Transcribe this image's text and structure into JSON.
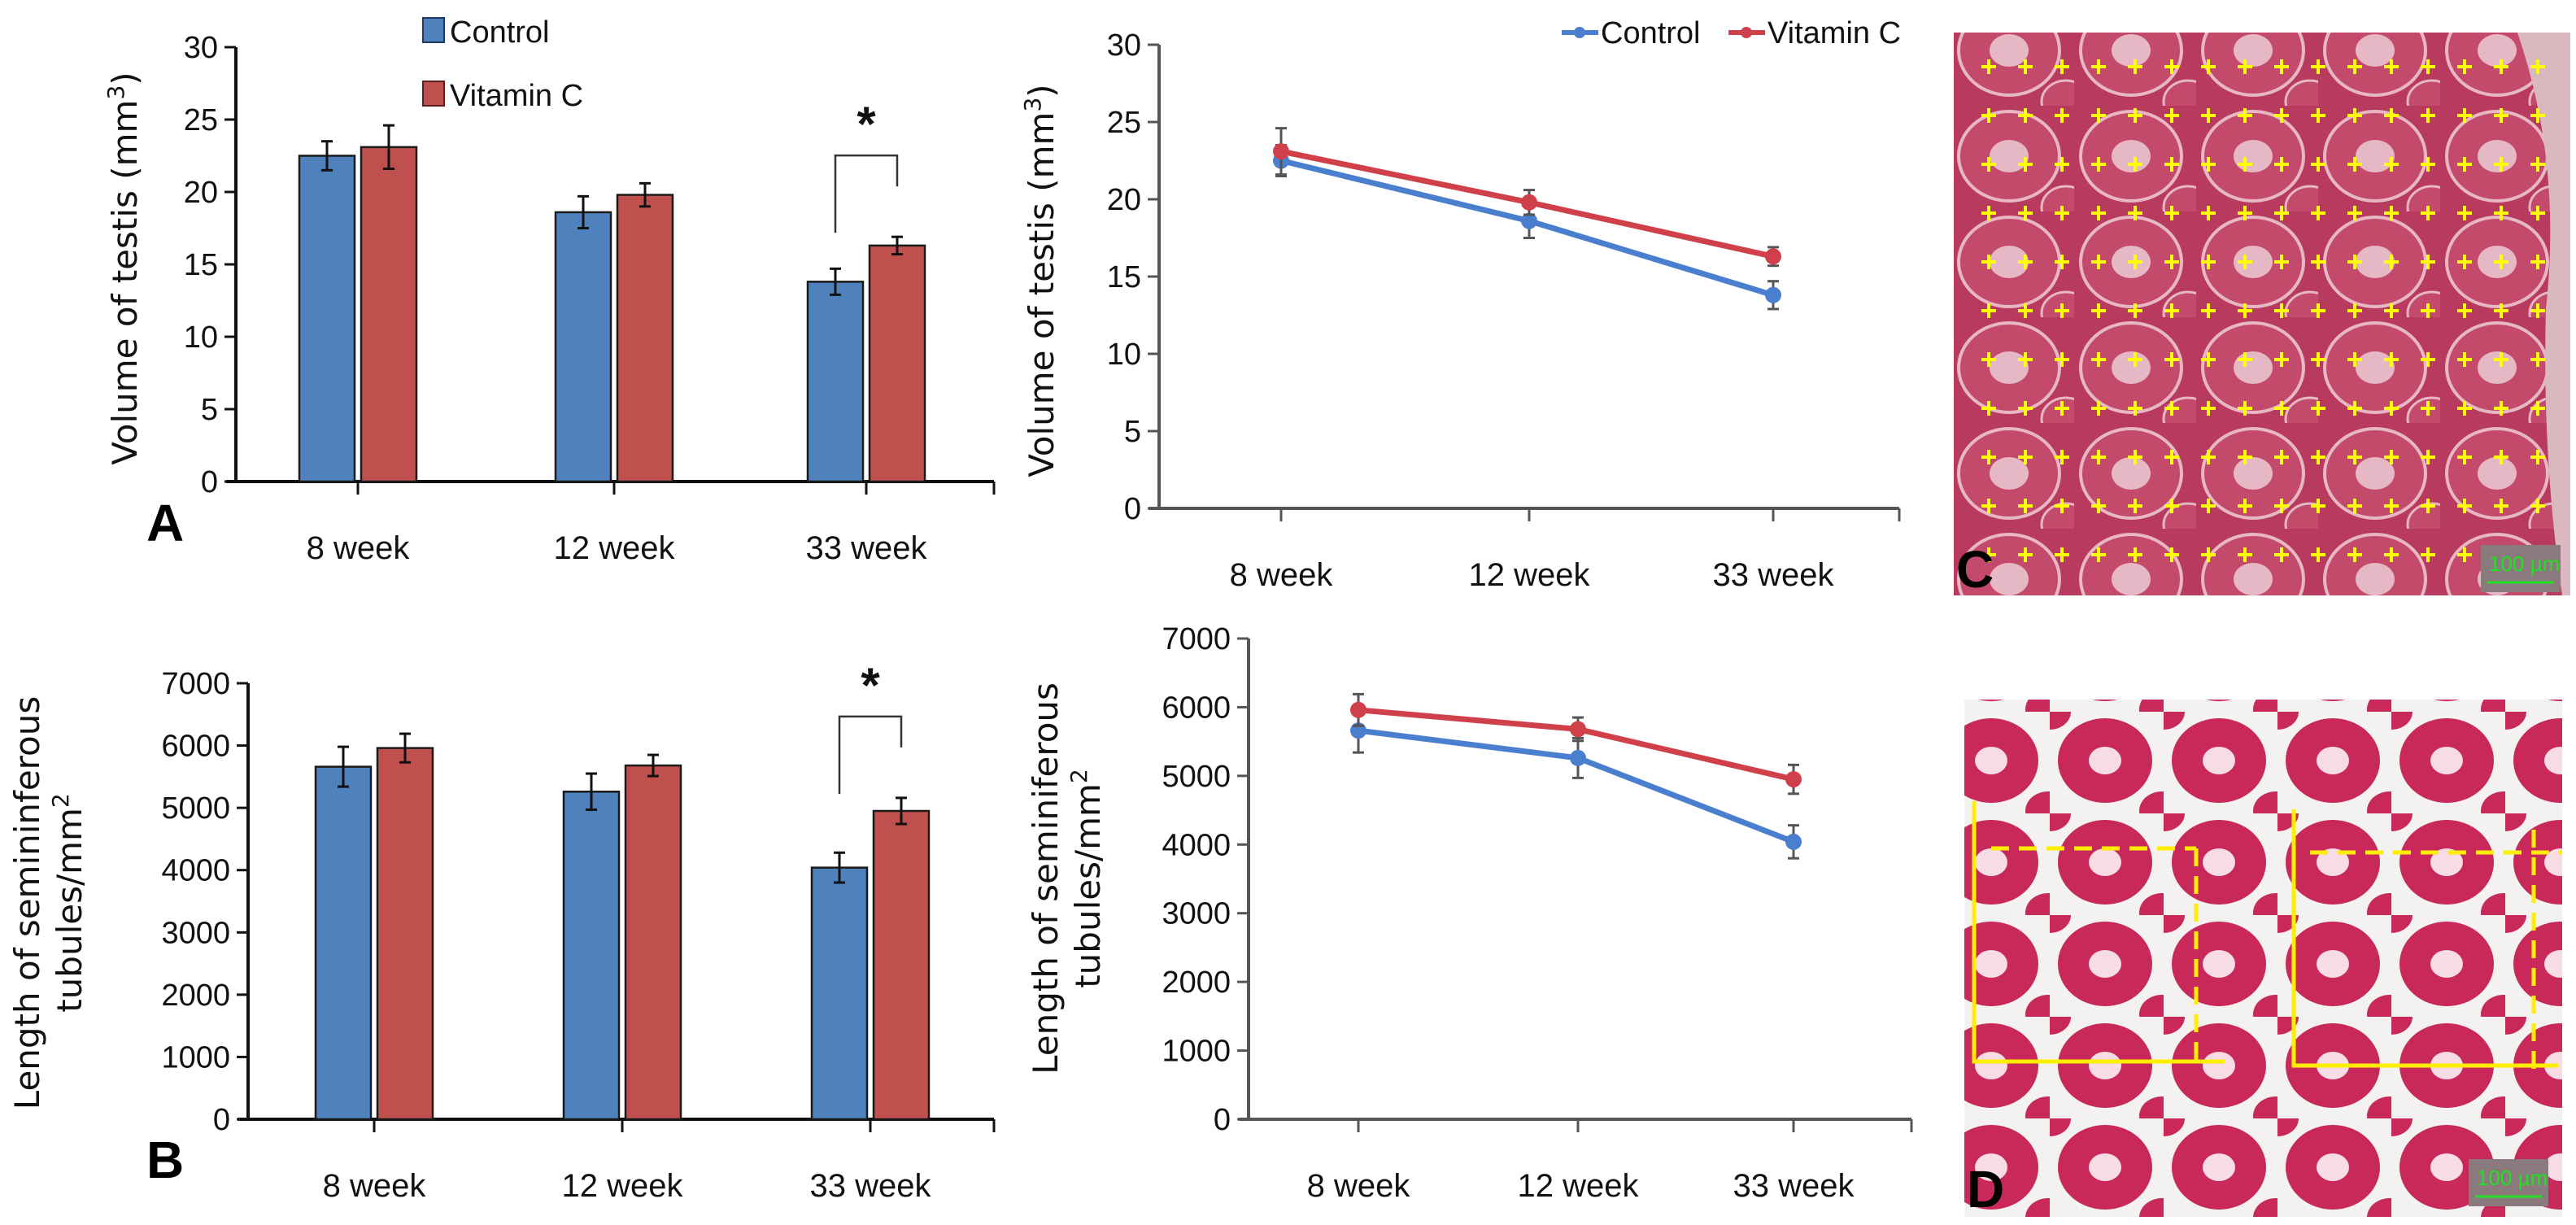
{
  "colors": {
    "control": "#4f81bd",
    "vitamin_c": "#c0504d",
    "control_line": "#4a7fd0",
    "vitamin_c_line": "#d0404a",
    "tissue": "#b8335a",
    "grid_marker": "#ffff00",
    "roi_line": "#ffee00",
    "scalebar": "#22e022"
  },
  "legend": {
    "control": "Control",
    "vitamin_c": "Vitamin C"
  },
  "panels": {
    "A": "A",
    "B": "B",
    "C": "C",
    "D": "D"
  },
  "significance_marker": "*",
  "micrographs": {
    "C": {
      "label": "C",
      "scale_bar": "100 µm",
      "overlay": "point-counting grid of yellow crosses"
    },
    "D": {
      "label": "D",
      "scale_bar": "100 µm",
      "overlay": "unbiased counting frames (solid inclusion / dashed exclusion lines)"
    }
  },
  "chart_data": [
    {
      "id": "A-bar",
      "type": "bar",
      "panel_label": "A",
      "title": "",
      "xlabel": "",
      "ylabel": "Volume of testis (mm³)",
      "ylabel_main": "Volume of testis (mm",
      "ylabel_sup": "3",
      "ylabel_close": ")",
      "categories": [
        "8 week",
        "12 week",
        "33 week"
      ],
      "ylim": [
        0,
        30
      ],
      "yticks": [
        0,
        5,
        10,
        15,
        20,
        25,
        30
      ],
      "grid": false,
      "legend": "top-left-inside",
      "series": [
        {
          "name": "Control",
          "values": [
            22.5,
            18.6,
            13.8
          ],
          "errors": [
            1.0,
            1.1,
            0.9
          ]
        },
        {
          "name": "Vitamin C",
          "values": [
            23.1,
            19.8,
            16.3
          ],
          "errors": [
            1.5,
            0.8,
            0.6
          ]
        }
      ],
      "annotations": [
        {
          "category": "33 week",
          "text": "*"
        }
      ]
    },
    {
      "id": "A-line",
      "type": "line",
      "title": "",
      "xlabel": "",
      "ylabel": "Volume of testis (mm³)",
      "ylabel_main": "Volume of testis (mm",
      "ylabel_sup": "3",
      "ylabel_close": ")",
      "categories": [
        "8 week",
        "12 week",
        "33 week"
      ],
      "ylim": [
        0,
        30
      ],
      "yticks": [
        0,
        5,
        10,
        15,
        20,
        25,
        30
      ],
      "grid": false,
      "legend": "top-right",
      "series": [
        {
          "name": "Control",
          "values": [
            22.5,
            18.6,
            13.8
          ],
          "errors": [
            1.0,
            1.1,
            0.9
          ]
        },
        {
          "name": "Vitamin C",
          "values": [
            23.1,
            19.8,
            16.3
          ],
          "errors": [
            1.5,
            0.8,
            0.6
          ]
        }
      ]
    },
    {
      "id": "B-bar",
      "type": "bar",
      "panel_label": "B",
      "title": "",
      "xlabel": "",
      "ylabel": "Length of semininferous tubules/mm²",
      "ylabel_line1": "Length of semininferous",
      "ylabel_line2_main": "tubules/mm",
      "ylabel_line2_sup": "2",
      "categories": [
        "8 week",
        "12 week",
        "33 week"
      ],
      "ylim": [
        0,
        7000
      ],
      "yticks": [
        0,
        1000,
        2000,
        3000,
        4000,
        5000,
        6000,
        7000
      ],
      "grid": false,
      "legend": "none",
      "series": [
        {
          "name": "Control",
          "values": [
            5660,
            5260,
            4040
          ],
          "errors": [
            320,
            290,
            240
          ]
        },
        {
          "name": "Vitamin C",
          "values": [
            5960,
            5680,
            4950
          ],
          "errors": [
            230,
            170,
            210
          ]
        }
      ],
      "annotations": [
        {
          "category": "33 week",
          "text": "*"
        }
      ]
    },
    {
      "id": "B-line",
      "type": "line",
      "title": "",
      "xlabel": "",
      "ylabel": "Length of seminiferous tubules/mm²",
      "ylabel_line1": "Length of seminiferous",
      "ylabel_line2_main": "tubules/mm",
      "ylabel_line2_sup": "2",
      "categories": [
        "8 week",
        "12 week",
        "33 week"
      ],
      "ylim": [
        0,
        7000
      ],
      "yticks": [
        0,
        1000,
        2000,
        3000,
        4000,
        5000,
        6000,
        7000
      ],
      "grid": false,
      "legend": "none",
      "series": [
        {
          "name": "Control",
          "values": [
            5660,
            5260,
            4040
          ],
          "errors": [
            320,
            290,
            240
          ]
        },
        {
          "name": "Vitamin C",
          "values": [
            5960,
            5680,
            4950
          ],
          "errors": [
            230,
            170,
            210
          ]
        }
      ]
    }
  ]
}
